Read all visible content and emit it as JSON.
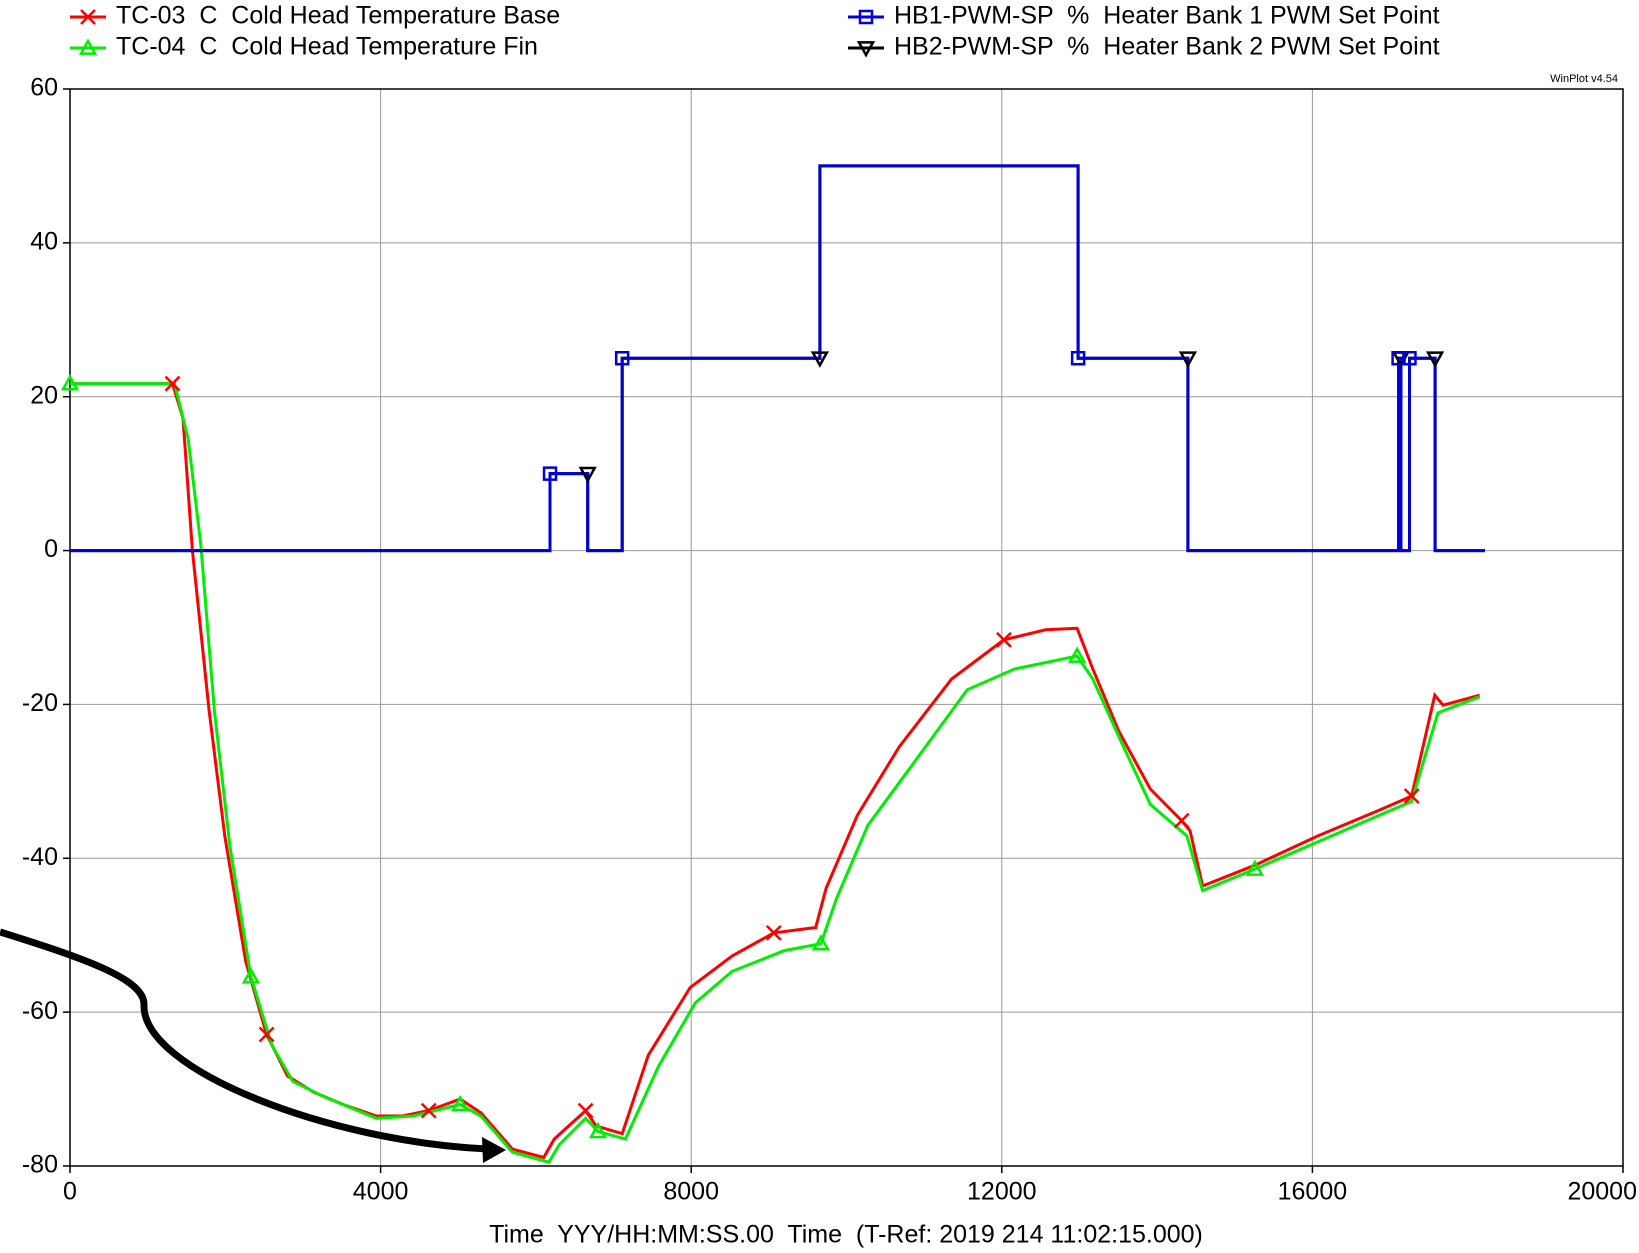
{
  "chart_data": {
    "type": "line",
    "watermark": "WinPlot v4.54",
    "xlabel": "Time  YYY/HH:MM:SS.00  Time  (T-Ref: 2019 214 11:02:15.000)",
    "xlim": [
      0,
      20000
    ],
    "xticks": [
      0,
      4000,
      8000,
      12000,
      16000,
      20000
    ],
    "ylim": [
      -80,
      60
    ],
    "yticks": [
      -80,
      -60,
      -40,
      -20,
      0,
      20,
      40,
      60
    ],
    "grid": true,
    "series": [
      {
        "name": "TC-03  C  Cold Head Temperature Base",
        "color": "#ff0000",
        "marker": "x",
        "x": [
          0,
          1320,
          1455,
          1576,
          1791,
          1993,
          2263,
          2532,
          2801,
          3138,
          3542,
          3946,
          4283,
          4620,
          5024,
          5293,
          5697,
          6101,
          6236,
          6640,
          6775,
          7111,
          7448,
          7987,
          8525,
          9064,
          9603,
          9737,
          10141,
          10680,
          11354,
          12027,
          12566,
          12970,
          13172,
          13508,
          13912,
          14316,
          14424,
          14586,
          15259,
          16067,
          16875,
          17279,
          17576,
          17683,
          18155
        ],
        "values": [
          21.7,
          21.7,
          17.2,
          0,
          -20.8,
          -37.1,
          -53.4,
          -62.9,
          -68.3,
          -70.4,
          -72.1,
          -73.5,
          -73.5,
          -72.8,
          -71.3,
          -73.1,
          -77.8,
          -78.9,
          -76.5,
          -72.8,
          -74.8,
          -75.8,
          -65.6,
          -56.8,
          -52.7,
          -49.7,
          -49,
          -43.9,
          -34.4,
          -25.5,
          -16.7,
          -11.6,
          -10.3,
          -10.1,
          -15.4,
          -23.5,
          -31,
          -35.1,
          -36.4,
          -43.6,
          -40.9,
          -37.1,
          -33.7,
          -31.9,
          -18.8,
          -20.1,
          -18.8
        ]
      },
      {
        "name": "TC-04  C  Cold Head Temperature Fin",
        "color": "#00ee00",
        "marker": "triangle",
        "x": [
          0,
          1347,
          1522,
          1683,
          1859,
          2061,
          2330,
          2599,
          2869,
          3273,
          3946,
          4418,
          5024,
          5293,
          5697,
          6168,
          6303,
          6640,
          6800,
          7152,
          7582,
          8053,
          8525,
          9199,
          9670,
          9872,
          10276,
          10815,
          11555,
          12162,
          12970,
          13172,
          13508,
          13912,
          14384,
          14586,
          15259,
          16337,
          17279,
          17616,
          18155
        ],
        "values": [
          21.7,
          21.7,
          14.5,
          0.9,
          -20.8,
          -38.5,
          -55.4,
          -64.3,
          -69,
          -71,
          -73.8,
          -73.5,
          -72,
          -73.5,
          -78.2,
          -79.5,
          -77.2,
          -73.8,
          -75.5,
          -76.5,
          -67,
          -58.8,
          -54.7,
          -52,
          -51.1,
          -45.2,
          -35.7,
          -28.3,
          -18.1,
          -15.4,
          -13.7,
          -16.7,
          -24.2,
          -33,
          -37.1,
          -44.2,
          -41.4,
          -36.7,
          -32.6,
          -21.1,
          -19
        ]
      },
      {
        "name": "HB2-PWM-SP  %  Heater Bank 2 PWM Set Point",
        "color": "#000000",
        "marker": "triangle-down",
        "x": [
          0,
          6182,
          6182,
          6667,
          6667,
          7111,
          7111,
          9657,
          9657,
          12983,
          12983,
          14397,
          14397,
          17110,
          17110,
          17140,
          17140,
          17250,
          17250,
          17580,
          17580,
          18222
        ],
        "values": [
          0,
          0,
          10,
          10,
          0,
          0,
          25,
          25,
          50,
          50,
          25,
          25,
          0,
          0,
          25,
          25,
          0,
          0,
          25,
          25,
          0,
          0
        ]
      },
      {
        "name": "HB1-PWM-SP  %  Heater Bank 1 PWM Set Point",
        "color": "#0000dd",
        "marker": "square",
        "x": [
          0,
          6182,
          6182,
          6667,
          6667,
          7111,
          7111,
          9657,
          9657,
          12983,
          12983,
          14397,
          14397,
          17110,
          17110,
          17140,
          17140,
          17250,
          17250,
          17580,
          17580,
          18222
        ],
        "values": [
          0,
          0,
          10,
          10,
          0,
          0,
          25,
          25,
          50,
          50,
          25,
          25,
          0,
          0,
          25,
          25,
          0,
          0,
          25,
          25,
          0,
          0
        ]
      }
    ]
  }
}
